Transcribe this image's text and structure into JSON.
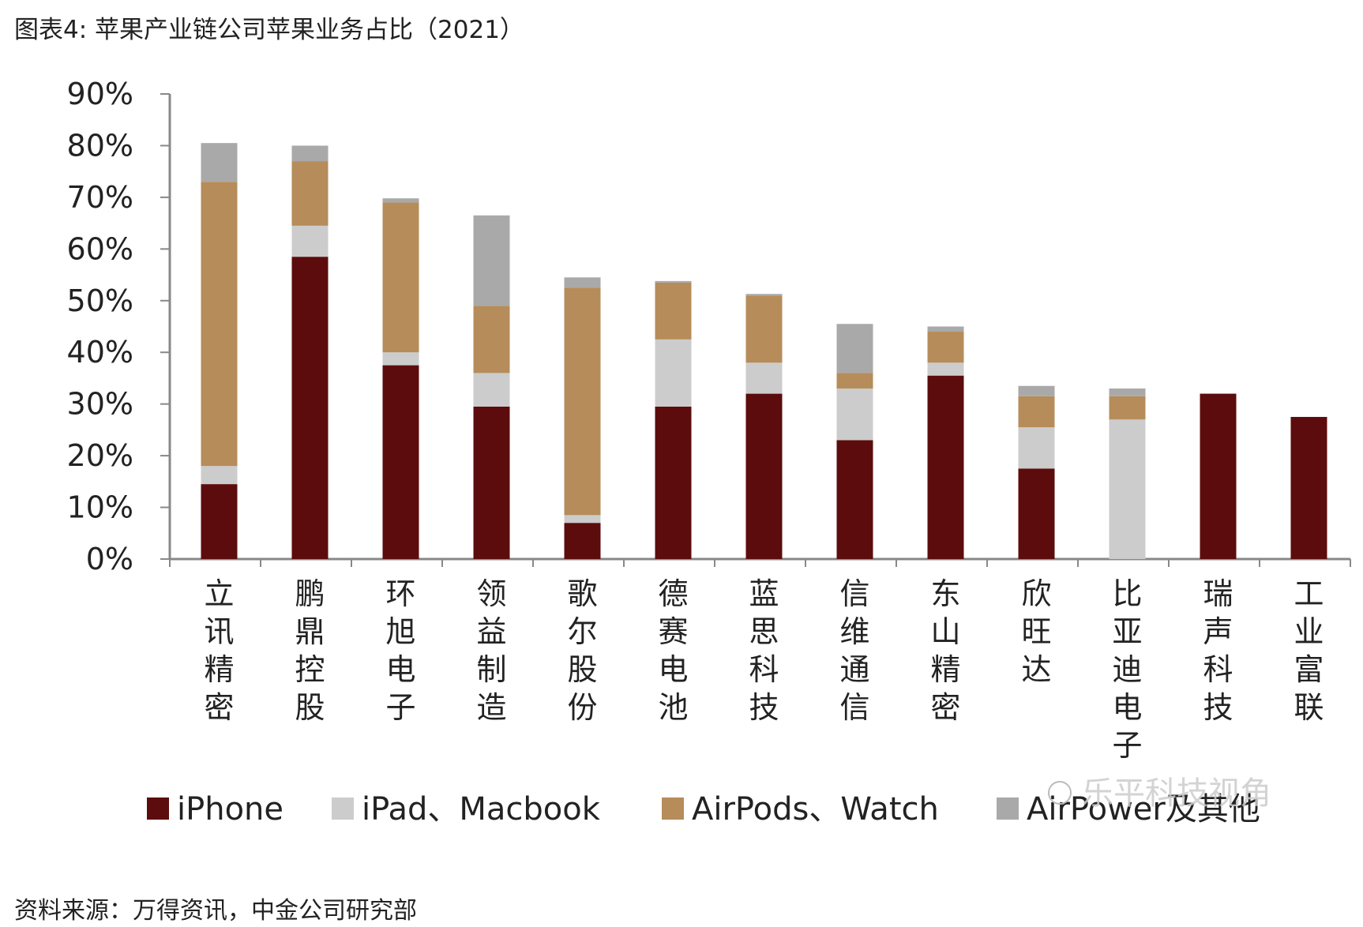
{
  "title": "图表4: 苹果产业链公司苹果业务占比（2021）",
  "source": "资料来源：万得资讯，中金公司研究部",
  "colors": {
    "iphone": "#5C0C0C",
    "ipad_macbook": "#CCCCCC",
    "airpods_watch": "#B68C5A",
    "airpower_other": "#A9A9A9",
    "axis": "#888888"
  },
  "chart_data": {
    "type": "bar",
    "stacked": true,
    "ylim": [
      0,
      90
    ],
    "yticks": [
      "0%",
      "10%",
      "20%",
      "30%",
      "40%",
      "50%",
      "60%",
      "70%",
      "80%",
      "90%"
    ],
    "categories": [
      "立讯精密",
      "鹏鼎控股",
      "环旭电子",
      "领益制造",
      "歌尔股份",
      "德赛电池",
      "蓝思科技",
      "信维通信",
      "东山精密",
      "欣旺达",
      "比亚迪电子",
      "瑞声科技",
      "工业富联"
    ],
    "series": [
      {
        "name": "iPhone",
        "values": [
          14.5,
          58.5,
          37.5,
          29.5,
          7,
          29.5,
          32,
          23,
          35.5,
          17.5,
          0,
          32,
          27.5
        ]
      },
      {
        "name": "iPad、Macbook",
        "values": [
          3.5,
          6,
          2.5,
          6.5,
          1.5,
          13,
          6,
          10,
          2.5,
          8,
          27,
          0,
          0
        ]
      },
      {
        "name": "AirPods、Watch",
        "values": [
          55,
          12.5,
          29,
          13,
          44,
          11,
          13,
          3,
          6,
          6,
          4.5,
          0,
          0
        ]
      },
      {
        "name": "AirPower及其他",
        "values": [
          7.5,
          3,
          0.8,
          17.5,
          2,
          0.3,
          0.3,
          9.5,
          1,
          2,
          1.5,
          0,
          0
        ]
      }
    ],
    "legend_position": "bottom",
    "grid": false,
    "watermark": "乐平科技视角"
  }
}
